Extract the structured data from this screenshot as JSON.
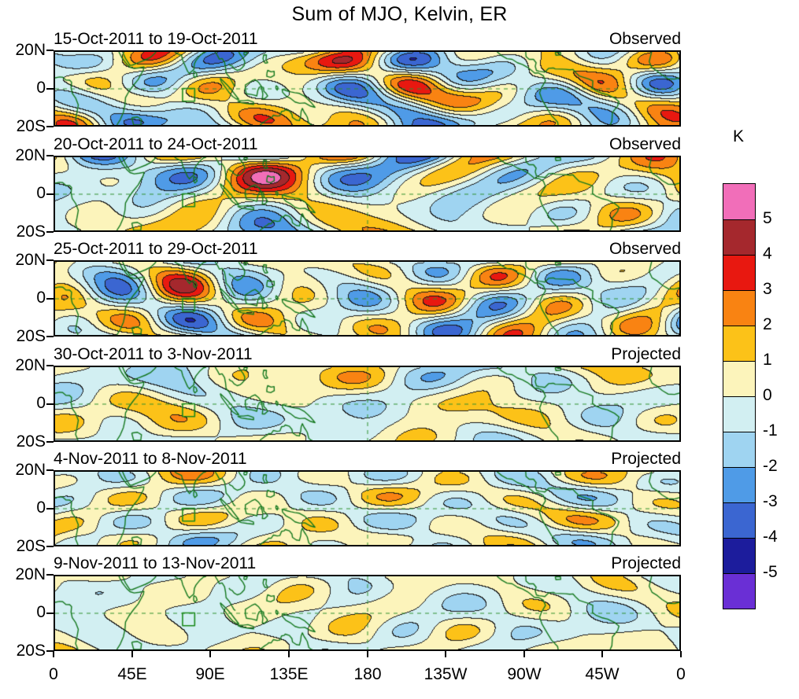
{
  "title": "Sum of MJO, Kelvin, ER",
  "chart_data": {
    "type": "heatmap",
    "subtype": "filled-contour longitude-latitude anomaly maps (6 pentads)",
    "title": "Sum of MJO, Kelvin, ER",
    "units": "K",
    "panels": [
      {
        "period": "15-Oct-2011 to 19-Oct-2011",
        "label": "Observed"
      },
      {
        "period": "20-Oct-2011 to 24-Oct-2011",
        "label": "Observed"
      },
      {
        "period": "25-Oct-2011 to 29-Oct-2011",
        "label": "Observed"
      },
      {
        "period": "30-Oct-2011 to 3-Nov-2011",
        "label": "Projected"
      },
      {
        "period": "4-Nov-2011 to 8-Nov-2011",
        "label": "Projected"
      },
      {
        "period": "9-Nov-2011 to 13-Nov-2011",
        "label": "Projected"
      }
    ],
    "x_axis": {
      "tick_labels": [
        "0",
        "45E",
        "90E",
        "135E",
        "180",
        "135W",
        "90W",
        "45W",
        "0"
      ],
      "range_deg_lon": [
        0,
        360
      ]
    },
    "y_axis": {
      "tick_labels": [
        "20N",
        "0",
        "20S"
      ],
      "range_deg_lat": [
        20,
        -20
      ]
    },
    "colorbar": {
      "label": "K",
      "tick_labels": [
        "5",
        "4",
        "3",
        "2",
        "1",
        "0",
        "-1",
        "-2",
        "-3",
        "-4",
        "-5"
      ],
      "levels": [
        5,
        4,
        3,
        2,
        1,
        0,
        -1,
        -2,
        -3,
        -4,
        -5
      ],
      "colors_top_to_bottom": [
        "#f16eb9",
        "#a5282d",
        "#e81810",
        "#f98312",
        "#fcc218",
        "#fcf4bb",
        "#d2eff2",
        "#9fd4f1",
        "#4f9be7",
        "#3b66d1",
        "#1c1c9c",
        "#6a2fd5"
      ]
    },
    "map_overlay": {
      "coastline_color": "#14781e",
      "equator_dashed_line": true,
      "dateline_180_dashed_line": true,
      "region_box": {
        "lon": [
          73.5,
          80.5
        ],
        "lat": [
          -7,
          0
        ]
      }
    },
    "legend_position": "right",
    "grid": "dashed green equator and 180-degree lines"
  }
}
